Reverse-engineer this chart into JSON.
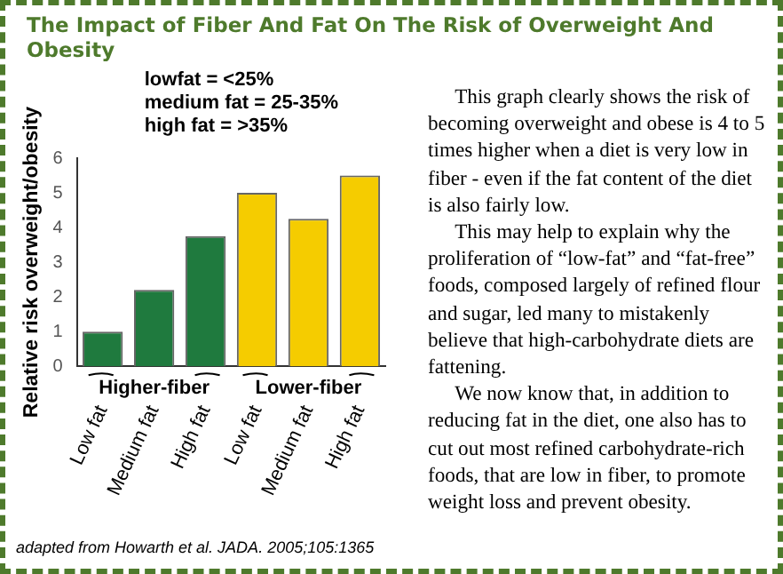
{
  "chart_data": {
    "type": "bar",
    "title": "The Impact of Fiber And Fat On The Risk of Overweight And Obesity",
    "ylabel": "Relative risk overweight/obesity",
    "categories": [
      "Low fat",
      "Medium fat",
      "High fat",
      "Low fat",
      "Medium fat",
      "High fat"
    ],
    "values": [
      1.0,
      2.2,
      3.75,
      5.0,
      4.25,
      5.5
    ],
    "colors": [
      "#1f7a3e",
      "#1f7a3e",
      "#1f7a3e",
      "#f5cc00",
      "#f5cc00",
      "#f5cc00"
    ],
    "ylim": [
      0,
      6
    ],
    "yticks": [
      0,
      1,
      2,
      3,
      4,
      5,
      6
    ],
    "grid": false,
    "legend": false,
    "annotations": [
      "lowfat = <25%",
      "medium fat = 25-35%",
      "high fat = >35%",
      "Higher-fiber",
      "Lower-fiber",
      "adapted from Howarth et al. JADA. 2005;105:1365",
      "This graph clearly shows the risk of becoming overweight and obese is 4 to 5 times higher when a diet is very low in fiber - even if the fat content of the diet is also fairly low.",
      "This may help to explain why the proliferation of “low-fat” and “fat-free” foods, composed largely of refined flour and sugar, led many to mistakenly believe that high-carbohydrate diets are fattening.",
      "We now know that, in addition to reducing fat in the diet, one also has to cut out most refined carbohydrate-rich foods, that are low in fiber, to promote weight loss and prevent obesity."
    ]
  }
}
